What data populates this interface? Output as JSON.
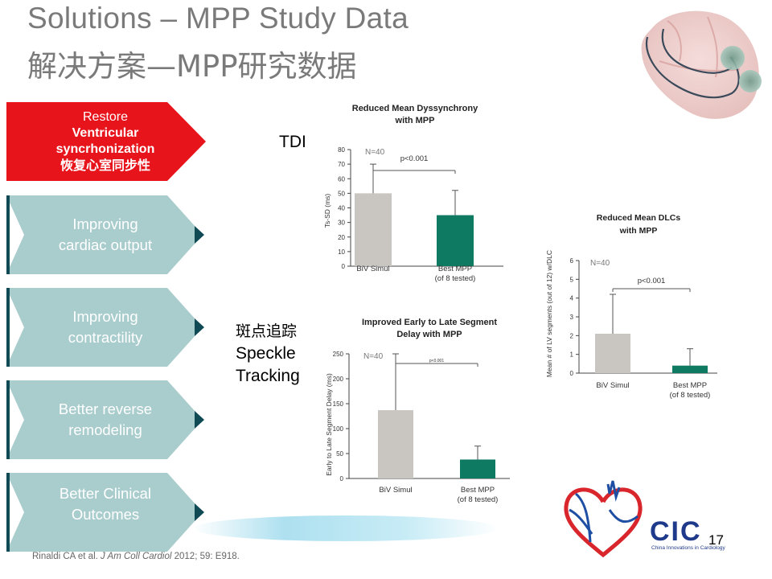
{
  "slide": {
    "title_en": "Solutions – MPP Study Data",
    "title_zh": "解决方案—MPP研究数据",
    "page_number": "17"
  },
  "steps": [
    {
      "line1": "Restore",
      "line2": "Ventricular",
      "line3": "syncrhonization",
      "line4": "恢复心室同步性"
    },
    {
      "line1": "Improving",
      "line2": "cardiac output"
    },
    {
      "line1": "Improving",
      "line2": "contractility"
    },
    {
      "line1": "Better reverse",
      "line2": "remodeling"
    },
    {
      "line1": "Better Clinical",
      "line2": "Outcomes"
    }
  ],
  "labels": {
    "tdi": "TDI",
    "speckle_zh": "斑点追踪",
    "speckle_en1": "Speckle",
    "speckle_en2": "Tracking"
  },
  "citation": {
    "authors": "Rinaldi CA et al. ",
    "journal": "J Am Coll Cardiol",
    "rest": " 2012; 59: E918."
  },
  "logo": {
    "text": "CIC",
    "subtitle": "China Innovations in Cardiology"
  },
  "colors": {
    "active_step": "#e8141c",
    "step": "#a9cccd",
    "step_tip": "#0f4a55",
    "bar_grey": "#c9c5c1",
    "bar_green": "#0e7a62"
  },
  "chart_data": [
    {
      "type": "bar",
      "title": "Reduced Mean Dyssynchrony with MPP",
      "ylabel": "Ts-SD (ms)",
      "categories": [
        "BiV Simul",
        "Best MPP"
      ],
      "category_notes": [
        "",
        "(of 8 tested)"
      ],
      "values": [
        50,
        35
      ],
      "error_upper": [
        70,
        52
      ],
      "ylim": [
        0,
        80
      ],
      "yticks": [
        "0",
        "10",
        "20",
        "30",
        "40",
        "50",
        "60",
        "70",
        "80"
      ],
      "n_label": "N=40",
      "p_label": "p<0.001"
    },
    {
      "type": "bar",
      "title": "Improved Early to Late Segment Delay with MPP",
      "ylabel": "Early to Late Segment Delay (ms)",
      "categories": [
        "BiV Simul",
        "Best MPP"
      ],
      "category_notes": [
        "",
        "(of 8 tested)"
      ],
      "values": [
        137,
        38
      ],
      "error_upper": [
        250,
        65
      ],
      "ylim": [
        0,
        250
      ],
      "yticks": [
        "0",
        "50",
        "100",
        "150",
        "200",
        "250"
      ],
      "n_label": "N=40",
      "p_label": "p<0.001"
    },
    {
      "type": "bar",
      "title": "Reduced Mean DLCs with MPP",
      "ylabel": "Mean # of LV segments (out of 12) w/DLC",
      "categories": [
        "BiV Simul",
        "Best MPP"
      ],
      "category_notes": [
        "",
        "(of 8 tested)"
      ],
      "values": [
        2.1,
        0.4
      ],
      "error_upper": [
        4.2,
        1.3
      ],
      "ylim": [
        0,
        6
      ],
      "yticks": [
        "0",
        "1",
        "2",
        "3",
        "4",
        "5",
        "6"
      ],
      "n_label": "N=40",
      "p_label": "p<0.001"
    }
  ]
}
